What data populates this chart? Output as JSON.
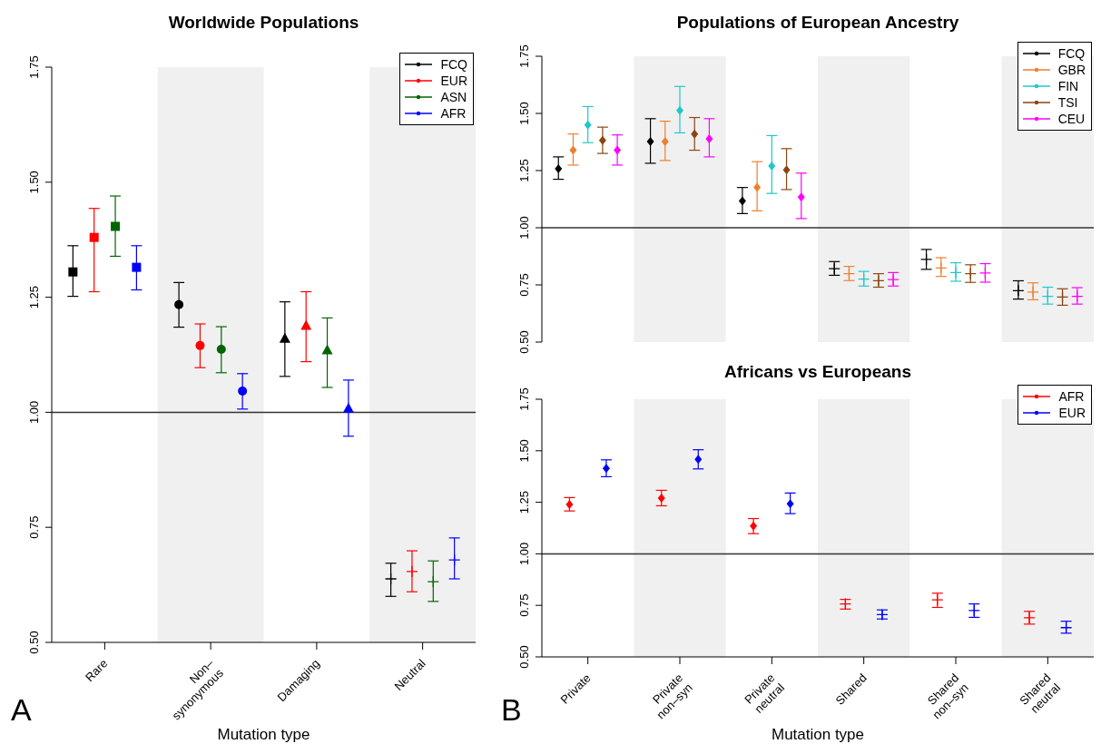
{
  "chart_data": [
    {
      "type": "scatter",
      "title": "Worldwide Populations",
      "xlabel": "Mutation type",
      "annotations": [
        "A"
      ],
      "categories": [
        "Rare",
        "Non–\nsynonymous",
        "Damaging",
        "Neutral"
      ],
      "ylim": [
        0.5,
        1.75
      ],
      "yticks": [
        {
          "value": 0.5,
          "label": "0.50"
        },
        {
          "value": 0.75,
          "label": "0.75"
        },
        {
          "value": 1,
          "label": "1.00"
        },
        {
          "value": 1.25,
          "label": "1.25"
        },
        {
          "value": 1.5,
          "label": "1.50"
        },
        {
          "value": 1.75,
          "label": "1.75"
        }
      ],
      "ref_lines": [
        {
          "axis": "y",
          "value": 1,
          "color": "#333333"
        }
      ],
      "bands": [
        {
          "axis": "x",
          "from": "Non–\nsynonymous",
          "to": "Non–\nsynonymous",
          "color": "#f0f0f0"
        },
        {
          "axis": "x",
          "from": "Neutral",
          "to": "Neutral",
          "color": "#f0f0f0"
        }
      ],
      "legend": "top right",
      "grid": false,
      "series": [
        {
          "name": "FCQ",
          "color": "#000000",
          "marker": "square",
          "values": [
            1.305,
            null,
            null,
            null
          ],
          "errors": [
            [
              1.252,
              1.362
            ],
            null,
            null,
            null
          ]
        },
        {
          "name": "EUR",
          "color": "#ff0000",
          "marker": "square",
          "values": [
            1.38,
            null,
            null,
            null
          ],
          "errors": [
            [
              1.262,
              1.443
            ],
            null,
            null,
            null
          ]
        },
        {
          "name": "ASN",
          "color": "#006400",
          "marker": "square",
          "values": [
            1.404,
            null,
            null,
            null
          ],
          "errors": [
            [
              1.339,
              1.47
            ],
            null,
            null,
            null
          ]
        },
        {
          "name": "AFR",
          "color": "#0000ff",
          "marker": "square",
          "values": [
            1.315,
            null,
            null,
            null
          ],
          "errors": [
            [
              1.266,
              1.362
            ],
            null,
            null,
            null
          ]
        },
        {
          "color": "#000000",
          "marker": "circle",
          "values": [
            null,
            1.234,
            null,
            null
          ],
          "errors": [
            null,
            [
              1.185,
              1.282
            ],
            null,
            null
          ]
        },
        {
          "color": "#ff0000",
          "marker": "circle",
          "values": [
            null,
            1.145,
            null,
            null
          ],
          "errors": [
            null,
            [
              1.097,
              1.192
            ],
            null,
            null
          ]
        },
        {
          "color": "#006400",
          "marker": "circle",
          "values": [
            null,
            1.137,
            null,
            null
          ],
          "errors": [
            null,
            [
              1.086,
              1.186
            ],
            null,
            null
          ]
        },
        {
          "color": "#0000ff",
          "marker": "circle",
          "values": [
            null,
            1.046,
            null,
            null
          ],
          "errors": [
            null,
            [
              1.007,
              1.084
            ],
            null,
            null
          ]
        },
        {
          "color": "#000000",
          "marker": "triangle",
          "values": [
            null,
            null,
            1.159,
            null
          ],
          "errors": [
            null,
            null,
            [
              1.078,
              1.24
            ],
            null
          ]
        },
        {
          "color": "#ff0000",
          "marker": "triangle",
          "values": [
            null,
            null,
            1.187,
            null
          ],
          "errors": [
            null,
            null,
            [
              1.11,
              1.262
            ],
            null
          ]
        },
        {
          "color": "#006400",
          "marker": "triangle",
          "values": [
            null,
            null,
            1.134,
            null
          ],
          "errors": [
            null,
            null,
            [
              1.054,
              1.205
            ],
            null
          ]
        },
        {
          "color": "#0000ff",
          "marker": "triangle",
          "values": [
            null,
            null,
            1.007,
            null
          ],
          "errors": [
            null,
            null,
            [
              0.948,
              1.07
            ],
            null
          ]
        },
        {
          "color": "#000000",
          "marker": "cross",
          "values": [
            null,
            null,
            null,
            0.638
          ],
          "errors": [
            null,
            null,
            null,
            [
              0.6,
              0.672
            ]
          ]
        },
        {
          "color": "#ff0000",
          "marker": "cross",
          "values": [
            null,
            null,
            null,
            0.654
          ],
          "errors": [
            null,
            null,
            null,
            [
              0.61,
              0.699
            ]
          ]
        },
        {
          "color": "#006400",
          "marker": "cross",
          "values": [
            null,
            null,
            null,
            0.632
          ],
          "errors": [
            null,
            null,
            null,
            [
              0.589,
              0.677
            ]
          ]
        },
        {
          "color": "#0000ff",
          "marker": "cross",
          "values": [
            null,
            null,
            null,
            0.679
          ],
          "errors": [
            null,
            null,
            null,
            [
              0.638,
              0.727
            ]
          ]
        }
      ]
    },
    {
      "type": "scatter",
      "title": "Populations of European Ancestry",
      "tick_labels": "y",
      "categories": [
        "Private",
        "Private\nnon–syn",
        "Private\nneutral",
        "Shared",
        "Shared\nnon–syn",
        "Shared\nneutral"
      ],
      "ylim": [
        0.5,
        1.75
      ],
      "yticks": [
        {
          "value": 0.5,
          "label": "0.50"
        },
        {
          "value": 0.75,
          "label": "0.75"
        },
        {
          "value": 1,
          "label": "1.00"
        },
        {
          "value": 1.25,
          "label": "1.25"
        },
        {
          "value": 1.5,
          "label": "1.50"
        },
        {
          "value": 1.75,
          "label": "1.75"
        }
      ],
      "ref_lines": [
        {
          "axis": "y",
          "value": 1,
          "color": "#333333"
        }
      ],
      "bands": [
        {
          "axis": "x",
          "from": "Private\nnon–syn",
          "to": "Private\nnon–syn",
          "color": "#f0f0f0"
        },
        {
          "axis": "x",
          "from": "Shared",
          "to": "Shared",
          "color": "#f0f0f0"
        },
        {
          "axis": "x",
          "from": "Shared\nneutral",
          "to": "Shared\nneutral",
          "color": "#f0f0f0"
        }
      ],
      "legend": "top right",
      "grid": false,
      "series": [
        {
          "name": "FCQ",
          "color": "#000000",
          "marker": "diamond",
          "values": [
            1.258,
            1.377,
            1.117,
            null,
            null,
            null
          ],
          "errors": [
            [
              1.212,
              1.31
            ],
            [
              1.282,
              1.477
            ],
            [
              1.062,
              1.176
            ],
            null,
            null,
            null
          ]
        },
        {
          "name": "GBR",
          "color": "#ee7f2d",
          "marker": "diamond",
          "values": [
            1.339,
            1.377,
            1.177,
            null,
            null,
            null
          ],
          "errors": [
            [
              1.274,
              1.41
            ],
            [
              1.294,
              1.466
            ],
            [
              1.074,
              1.289
            ],
            null,
            null,
            null
          ]
        },
        {
          "name": "FIN",
          "color": "#20c8c8",
          "marker": "diamond",
          "values": [
            1.449,
            1.513,
            1.27,
            null,
            null,
            null
          ],
          "errors": [
            [
              1.372,
              1.53
            ],
            [
              1.415,
              1.618
            ],
            [
              1.15,
              1.403
            ],
            null,
            null,
            null
          ]
        },
        {
          "name": "TSI",
          "color": "#8b4513",
          "marker": "diamond",
          "values": [
            1.382,
            1.41,
            1.253,
            null,
            null,
            null
          ],
          "errors": [
            [
              1.325,
              1.44
            ],
            [
              1.339,
              1.482
            ],
            [
              1.167,
              1.346
            ],
            null,
            null,
            null
          ]
        },
        {
          "name": "CEU",
          "color": "#ff00ff",
          "marker": "diamond",
          "values": [
            1.339,
            1.389,
            1.134,
            null,
            null,
            null
          ],
          "errors": [
            [
              1.274,
              1.406
            ],
            [
              1.31,
              1.477
            ],
            [
              1.04,
              1.239
            ],
            null,
            null,
            null
          ]
        },
        {
          "color": "#000000",
          "marker": "cross",
          "values": [
            null,
            null,
            null,
            0.821,
            0.862,
            0.725
          ],
          "errors": [
            null,
            null,
            null,
            [
              0.792,
              0.852
            ],
            [
              0.818,
              0.905
            ],
            [
              0.688,
              0.768
            ]
          ]
        },
        {
          "color": "#ee7f2d",
          "marker": "cross",
          "values": [
            null,
            null,
            null,
            0.799,
            0.824,
            0.719
          ],
          "errors": [
            null,
            null,
            null,
            [
              0.769,
              0.831
            ],
            [
              0.787,
              0.869
            ],
            [
              0.685,
              0.759
            ]
          ]
        },
        {
          "color": "#20c8c8",
          "marker": "cross",
          "values": [
            null,
            null,
            null,
            0.775,
            0.804,
            0.7
          ],
          "errors": [
            null,
            null,
            null,
            [
              0.745,
              0.809
            ],
            [
              0.766,
              0.847
            ],
            [
              0.666,
              0.74
            ]
          ]
        },
        {
          "color": "#8b4513",
          "marker": "cross",
          "values": [
            null,
            null,
            null,
            0.768,
            0.799,
            0.697
          ],
          "errors": [
            null,
            null,
            null,
            [
              0.74,
              0.799
            ],
            [
              0.761,
              0.838
            ],
            [
              0.661,
              0.733
            ]
          ]
        },
        {
          "color": "#ff00ff",
          "marker": "cross",
          "values": [
            null,
            null,
            null,
            0.773,
            0.802,
            0.7
          ],
          "errors": [
            null,
            null,
            null,
            [
              0.745,
              0.804
            ],
            [
              0.762,
              0.843
            ],
            [
              0.666,
              0.738
            ]
          ]
        }
      ]
    },
    {
      "type": "scatter",
      "title": "Africans vs Europeans",
      "xlabel": "Mutation type",
      "annotations": [
        "B"
      ],
      "categories": [
        "Private",
        "Private\nnon–syn",
        "Private\nneutral",
        "Shared",
        "Shared\nnon–syn",
        "Shared\nneutral"
      ],
      "ylim": [
        0.5,
        1.75
      ],
      "yticks": [
        {
          "value": 0.5,
          "label": "0.50"
        },
        {
          "value": 0.75,
          "label": "0.75"
        },
        {
          "value": 1,
          "label": "1.00"
        },
        {
          "value": 1.25,
          "label": "1.25"
        },
        {
          "value": 1.5,
          "label": "1.50"
        },
        {
          "value": 1.75,
          "label": "1.75"
        }
      ],
      "ref_lines": [
        {
          "axis": "y",
          "value": 1,
          "color": "#333333"
        }
      ],
      "bands": [
        {
          "axis": "x",
          "from": "Private\nnon–syn",
          "to": "Private\nnon–syn",
          "color": "#f0f0f0"
        },
        {
          "axis": "x",
          "from": "Shared",
          "to": "Shared",
          "color": "#f0f0f0"
        },
        {
          "axis": "x",
          "from": "Shared\nneutral",
          "to": "Shared\nneutral",
          "color": "#f0f0f0"
        }
      ],
      "legend": "top right",
      "grid": false,
      "series": [
        {
          "name": "AFR",
          "color": "#ff0000",
          "marker": "diamond",
          "values": [
            1.239,
            1.27,
            1.135,
            null,
            null,
            null
          ],
          "errors": [
            [
              1.208,
              1.273
            ],
            [
              1.233,
              1.308
            ],
            [
              1.098,
              1.171
            ],
            null,
            null,
            null
          ]
        },
        {
          "name": "EUR",
          "color": "#0000ff",
          "marker": "diamond",
          "values": [
            1.414,
            1.458,
            1.243,
            null,
            null,
            null
          ],
          "errors": [
            [
              1.374,
              1.456
            ],
            [
              1.412,
              1.505
            ],
            [
              1.195,
              1.295
            ],
            null,
            null,
            null
          ]
        },
        {
          "color": "#ff0000",
          "marker": "cross",
          "values": [
            null,
            null,
            null,
            0.757,
            0.777,
            0.69
          ],
          "errors": [
            null,
            null,
            null,
            [
              0.732,
              0.779
            ],
            [
              0.74,
              0.809
            ],
            [
              0.659,
              0.721
            ]
          ]
        },
        {
          "color": "#0000ff",
          "marker": "cross",
          "values": [
            null,
            null,
            null,
            0.705,
            0.725,
            0.642
          ],
          "errors": [
            null,
            null,
            null,
            [
              0.684,
              0.728
            ],
            [
              0.692,
              0.757
            ],
            [
              0.615,
              0.673
            ]
          ]
        }
      ]
    }
  ]
}
